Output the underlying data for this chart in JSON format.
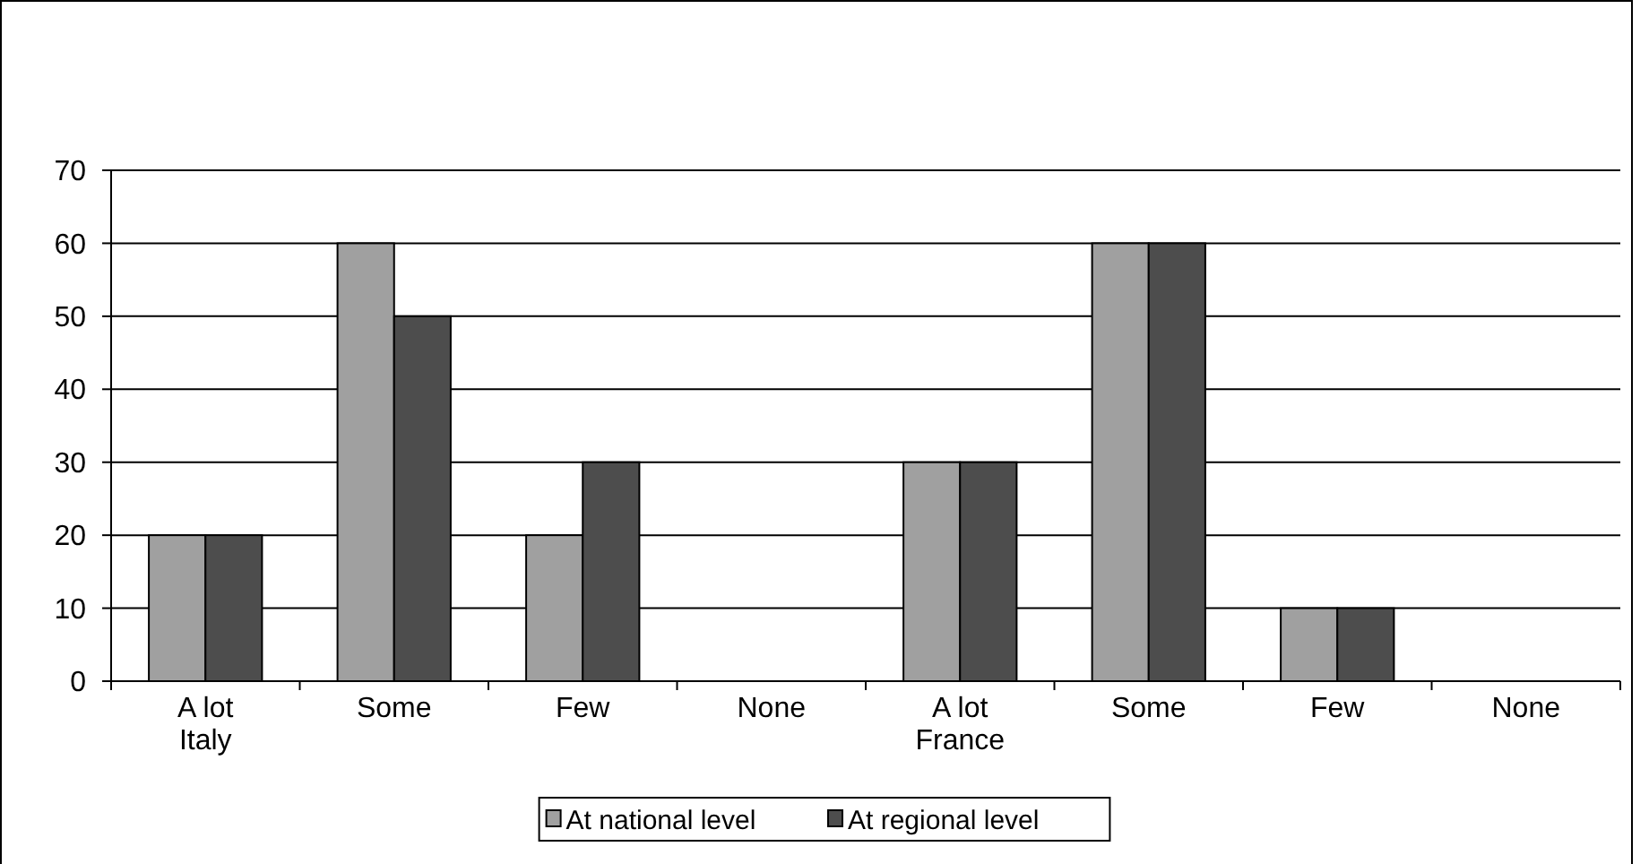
{
  "chart_data": {
    "type": "bar",
    "categories": [
      "A lot\nItaly",
      "Some",
      "Few",
      "None",
      "A lot\nFrance",
      "Some",
      "Few",
      "None"
    ],
    "series": [
      {
        "name": "At national level",
        "color": "#a0a0a0",
        "values": [
          20,
          60,
          20,
          0,
          30,
          60,
          10,
          0
        ]
      },
      {
        "name": "At regional level",
        "color": "#4d4d4d",
        "values": [
          20,
          50,
          30,
          0,
          30,
          60,
          10,
          0
        ]
      }
    ],
    "ylim": [
      0,
      70
    ],
    "yticks": [
      0,
      10,
      20,
      30,
      40,
      50,
      60,
      70
    ],
    "grid": "y",
    "legend": "bottom"
  }
}
